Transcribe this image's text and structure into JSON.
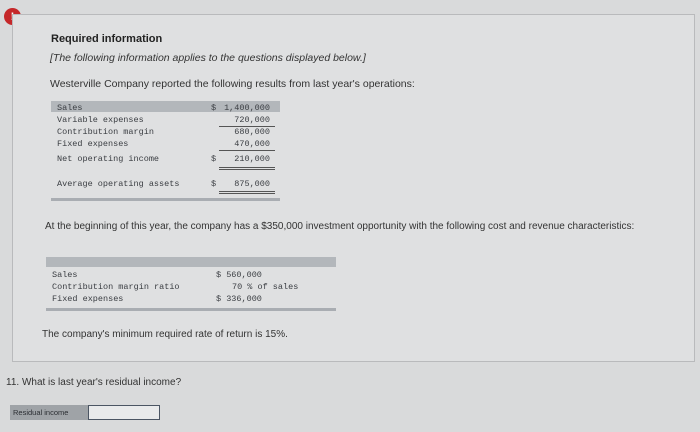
{
  "alert": {
    "glyph": "!"
  },
  "header": {
    "title": "Required information",
    "subtitle": "[The following information applies to the questions displayed below.]",
    "intro": "Westerville Company reported the following results from last year's operations:"
  },
  "table1": {
    "rows": [
      {
        "label": "Sales",
        "currency": "$",
        "value": "1,400,000"
      },
      {
        "label": "Variable expenses",
        "currency": "",
        "value": "720,000"
      },
      {
        "label": "Contribution margin",
        "currency": "",
        "value": "680,000"
      },
      {
        "label": "Fixed expenses",
        "currency": "",
        "value": "470,000"
      },
      {
        "label": "Net operating income",
        "currency": "$",
        "value": "210,000"
      },
      {
        "label": "Average operating assets",
        "currency": "$",
        "value": "875,000"
      }
    ]
  },
  "mid_text": "At the beginning of this year, the company has a $350,000 investment opportunity with the following cost and revenue characteristics:",
  "table2": {
    "rows": [
      {
        "label": "Sales",
        "value": "$ 560,000"
      },
      {
        "label": "Contribution margin ratio",
        "value": "70 % of sales"
      },
      {
        "label": "Fixed expenses",
        "value": "$ 336,000"
      }
    ]
  },
  "rate_text": "The company's minimum required rate of return is 15%.",
  "question": {
    "text": "11. What is last year's residual income?",
    "answer_label": "Residual income",
    "answer_value": ""
  }
}
